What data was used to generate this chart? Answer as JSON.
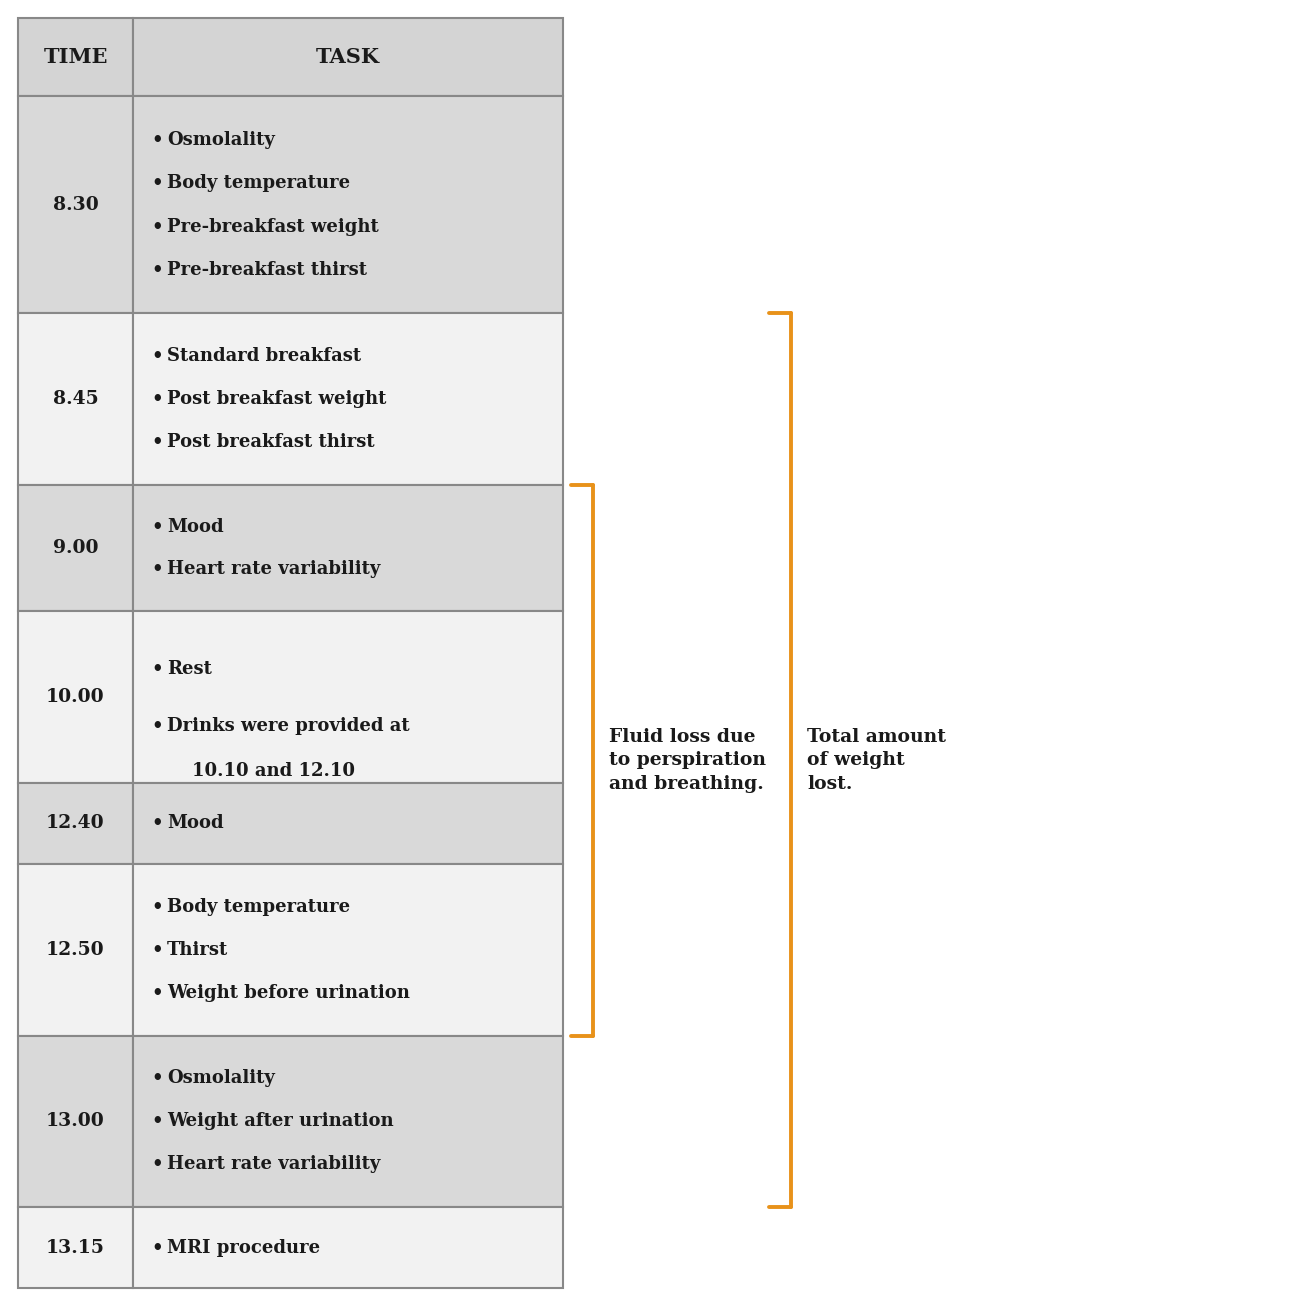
{
  "rows": [
    {
      "time": "8.30",
      "tasks": [
        "Osmolality",
        "Body temperature",
        "Pre-breakfast weight",
        "Pre-breakfast thirst"
      ],
      "bg": "#d9d9d9",
      "n_lines": 4
    },
    {
      "time": "8.45",
      "tasks": [
        "Standard breakfast",
        "Post breakfast weight",
        "Post breakfast thirst"
      ],
      "bg": "#f2f2f2",
      "n_lines": 3
    },
    {
      "time": "9.00",
      "tasks": [
        "Mood",
        "Heart rate variability"
      ],
      "bg": "#d9d9d9",
      "n_lines": 2
    },
    {
      "time": "10.00",
      "tasks": [
        "Rest",
        "Drinks were provided at\n    10.10 and 12.10"
      ],
      "bg": "#f2f2f2",
      "n_lines": 3
    },
    {
      "time": "12.40",
      "tasks": [
        "Mood"
      ],
      "bg": "#d9d9d9",
      "n_lines": 1
    },
    {
      "time": "12.50",
      "tasks": [
        "Body temperature",
        "Thirst",
        "Weight before urination"
      ],
      "bg": "#f2f2f2",
      "n_lines": 3
    },
    {
      "time": "13.00",
      "tasks": [
        "Osmolality",
        "Weight after urination",
        "Heart rate variability"
      ],
      "bg": "#d9d9d9",
      "n_lines": 3
    },
    {
      "time": "13.15",
      "tasks": [
        "MRI procedure"
      ],
      "bg": "#f2f2f2",
      "n_lines": 1
    }
  ],
  "header_bg": "#d4d4d4",
  "header_time": "TIME",
  "header_task": "TASK",
  "text_color": "#1a1a1a",
  "border_color": "#888888",
  "orange_color": "#e8921a",
  "bracket1_label": "Fluid loss due\nto perspiration\nand breathing.",
  "bracket2_label": "Total amount\nof weight\nlost.",
  "fig_width": 12.95,
  "fig_height": 13.06,
  "dpi": 100
}
